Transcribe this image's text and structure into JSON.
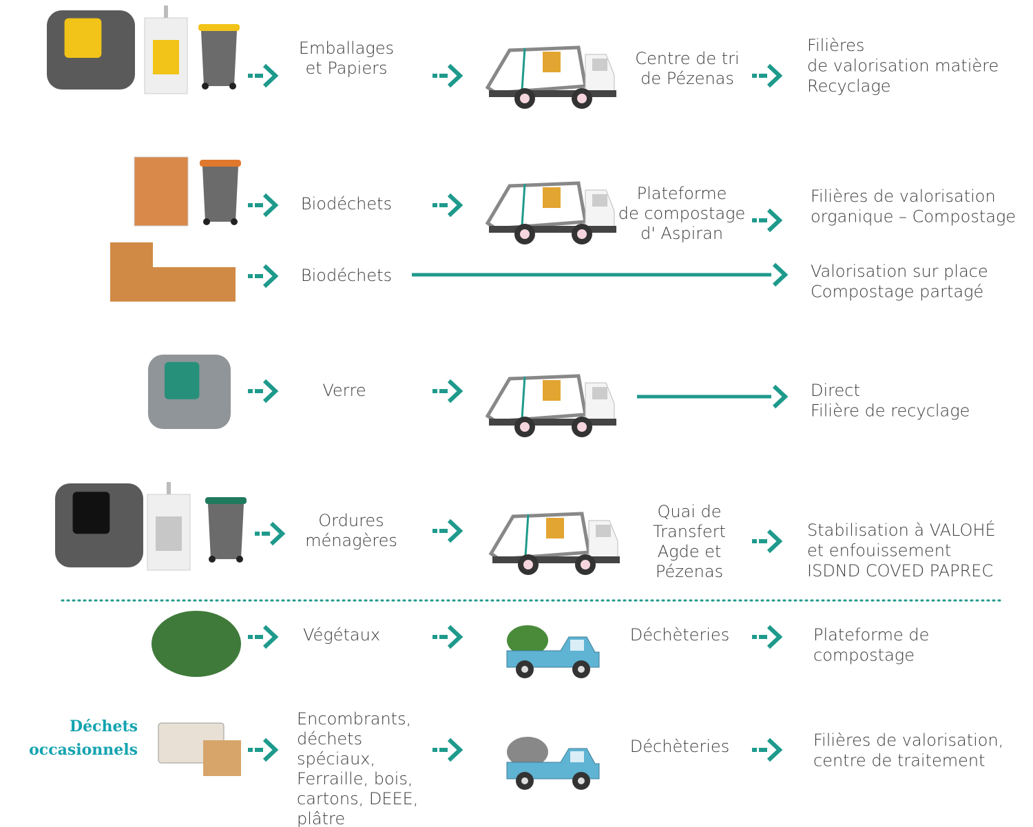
{
  "rows": [
    {
      "waste": [
        "Emballages",
        "et Papiers"
      ],
      "facility": [
        "Centre de tri",
        "de Pézenas"
      ],
      "destination": [
        "Filières",
        "de valorisation matière",
        "Recyclage"
      ]
    },
    {
      "waste": [
        "Biodéchets"
      ],
      "facility": [
        "Plateforme",
        "de compostage",
        "d' Aspiran"
      ],
      "destination": [
        "Filières de valorisation",
        "organique – Compostage"
      ]
    },
    {
      "waste": [
        "Biodéchets"
      ],
      "destination": [
        "Valorisation sur place",
        "Compostage partagé"
      ]
    },
    {
      "waste": [
        "Verre"
      ],
      "destination": [
        "Direct",
        "Filière de recyclage"
      ]
    },
    {
      "waste": [
        "Ordures",
        "ménagères"
      ],
      "facility": [
        "Quai de",
        "Transfert",
        "Agde et",
        "Pézenas"
      ],
      "destination": [
        "Stabilisation à  VALOHÉ",
        "et enfouissement",
        "ISDND COVED PAPREC"
      ]
    },
    {
      "waste": [
        "Végétaux"
      ],
      "facility": [
        "Déchèteries"
      ],
      "destination": [
        "Plateforme de",
        "compostage"
      ]
    },
    {
      "label": [
        "Déchets",
        "occasionnels"
      ],
      "waste": [
        "Encombrants,",
        "déchets",
        "spéciaux,",
        "Ferraille, bois,",
        "cartons, DEEE,",
        "plâtre"
      ],
      "facility": [
        "Déchèteries"
      ],
      "destination": [
        "Filières de valorisation,",
        "centre de traitement"
      ]
    }
  ]
}
